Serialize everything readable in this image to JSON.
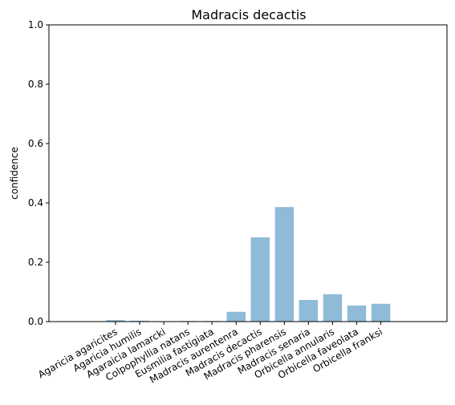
{
  "chart_data": {
    "type": "bar",
    "title": "Madracis decactis",
    "xlabel": "",
    "ylabel": "confidence",
    "ylim": [
      0,
      1.0
    ],
    "yticks": [
      "0.0",
      "0.2",
      "0.4",
      "0.6",
      "0.8",
      "1.0"
    ],
    "categories": [
      "Agaricia agaricites",
      "Agaricia humilis",
      "Agaraicia lamarcki",
      "Colpophyllia natans",
      "Eusmilia fastigiata",
      "Madracis aurentenra",
      "Madracis decactis",
      "Madracis pharensis",
      "Madracis senaria",
      "Orbicella annularis",
      "Orbicella faveolata",
      "Orbicella franksi"
    ],
    "values": [
      0.005,
      0.003,
      0.001,
      0.002,
      0.002,
      0.033,
      0.284,
      0.386,
      0.073,
      0.092,
      0.054,
      0.06
    ],
    "bar_color": "#8fbbd9",
    "grid": false,
    "legend": "none"
  }
}
